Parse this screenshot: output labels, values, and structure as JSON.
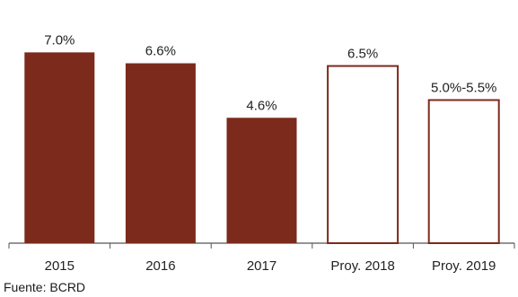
{
  "chart_data": {
    "type": "bar",
    "categories": [
      "2015",
      "2016",
      "2017",
      "Proy. 2018",
      "Proy. 2019"
    ],
    "values": [
      7.0,
      6.6,
      4.6,
      6.5,
      5.25
    ],
    "value_labels": [
      "7.0%",
      "6.6%",
      "4.6%",
      "6.5%",
      "5.0%-5.5%"
    ],
    "projected": [
      false,
      false,
      false,
      true,
      true
    ],
    "ylim": [
      0,
      8
    ],
    "grid": false,
    "colors": {
      "bar_fill": "#7b2a1c",
      "projected_fill": "#ffffff",
      "projected_stroke": "#7b2a1c",
      "axis": "#555555"
    }
  },
  "source": "Fuente: BCRD"
}
